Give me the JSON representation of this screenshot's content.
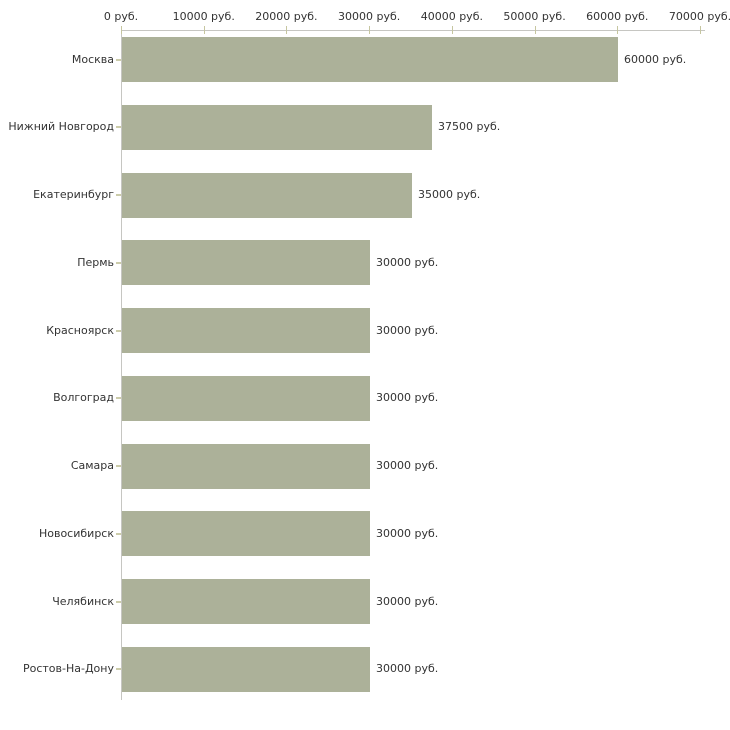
{
  "chart_data": {
    "type": "bar",
    "orientation": "horizontal",
    "title": "",
    "categories": [
      "Москва",
      "Нижний Новгород",
      "Екатеринбург",
      "Пермь",
      "Красноярск",
      "Волгоград",
      "Самара",
      "Новосибирск",
      "Челябинск",
      "Ростов-На-Дону"
    ],
    "values": [
      60000,
      37500,
      35000,
      30000,
      30000,
      30000,
      30000,
      30000,
      30000,
      30000
    ],
    "bar_labels": [
      "60000 руб.",
      "37500 руб.",
      "35000 руб.",
      "30000 руб.",
      "30000 руб.",
      "30000 руб.",
      "30000 руб.",
      "30000 руб.",
      "30000 руб.",
      "30000 руб."
    ],
    "x_axis": {
      "min": 0,
      "max": 70000,
      "ticks": [
        0,
        10000,
        20000,
        30000,
        40000,
        50000,
        60000,
        70000
      ],
      "tick_labels": [
        "0 руб.",
        "10000 руб.",
        "20000 руб.",
        "30000 руб.",
        "40000 руб.",
        "50000 руб.",
        "60000 руб.",
        "70000 руб."
      ],
      "position": "top",
      "unit": "руб."
    },
    "grid": false,
    "legend": "none",
    "colors": {
      "bar": "#acb199",
      "axis_line": "#c6c6c2",
      "tick_mark": "#c6c6a0",
      "category_tick": "#ccccaa",
      "text": "#333333",
      "background": "#ffffff"
    }
  }
}
